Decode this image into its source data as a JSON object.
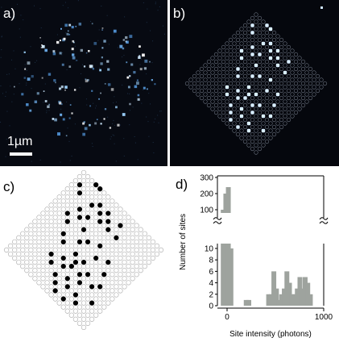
{
  "panels": {
    "a": {
      "label": "a)",
      "scale_bar": "1µm"
    },
    "b": {
      "label": "b)"
    },
    "c": {
      "label": "c)"
    },
    "d": {
      "label": "d)"
    }
  },
  "lattice": {
    "size": 20,
    "occupied": [
      [
        3,
        0
      ],
      [
        4,
        0
      ],
      [
        1,
        2
      ],
      [
        2,
        3
      ],
      [
        5,
        3
      ],
      [
        6,
        2
      ],
      [
        7,
        3
      ],
      [
        8,
        2
      ],
      [
        8,
        4
      ],
      [
        9,
        3
      ],
      [
        10,
        4
      ],
      [
        11,
        2
      ],
      [
        12,
        4
      ],
      [
        4,
        5
      ],
      [
        5,
        6
      ],
      [
        6,
        5
      ],
      [
        3,
        7
      ],
      [
        4,
        8
      ],
      [
        7,
        7
      ],
      [
        8,
        9
      ],
      [
        9,
        8
      ],
      [
        11,
        7
      ],
      [
        12,
        9
      ],
      [
        14,
        8
      ],
      [
        15,
        10
      ],
      [
        5,
        10
      ],
      [
        6,
        11
      ],
      [
        9,
        11
      ],
      [
        10,
        12
      ],
      [
        11,
        11
      ],
      [
        12,
        13
      ],
      [
        13,
        12
      ],
      [
        8,
        13
      ],
      [
        9,
        14
      ],
      [
        10,
        13
      ],
      [
        6,
        14
      ],
      [
        7,
        15
      ],
      [
        11,
        15
      ],
      [
        12,
        16
      ],
      [
        13,
        14
      ],
      [
        15,
        13
      ],
      [
        16,
        12
      ],
      [
        14,
        16
      ],
      [
        10,
        17
      ],
      [
        11,
        18
      ],
      [
        9,
        16
      ],
      [
        13,
        18
      ],
      [
        15,
        17
      ],
      [
        17,
        15
      ]
    ]
  },
  "chart_data": {
    "type": "bar",
    "xlabel": "Site intensity (photons)",
    "ylabel": "Number of sites",
    "x_ticks": [
      0,
      1000
    ],
    "y_ticks_lower": [
      0,
      2,
      4,
      6,
      8,
      10
    ],
    "y_ticks_upper": [
      100,
      200,
      300
    ],
    "xlim": [
      -100,
      1000
    ],
    "bins": {
      "centers": [
        -40,
        -13,
        13,
        40,
        198,
        225,
        430,
        457,
        484,
        511,
        538,
        565,
        592,
        619,
        646,
        673,
        700,
        727,
        754,
        781,
        808,
        835,
        862
      ],
      "values": [
        100,
        200,
        240,
        10,
        1,
        1,
        2,
        2,
        6,
        3,
        1,
        2,
        3,
        6,
        4,
        2,
        2,
        3,
        5,
        3,
        5,
        4,
        2
      ]
    },
    "bar_color": "#9ea39e"
  },
  "colors": {
    "site_fill": "#000000",
    "site_empty": "#ffffff",
    "site_stroke": "#b4b4b4"
  }
}
